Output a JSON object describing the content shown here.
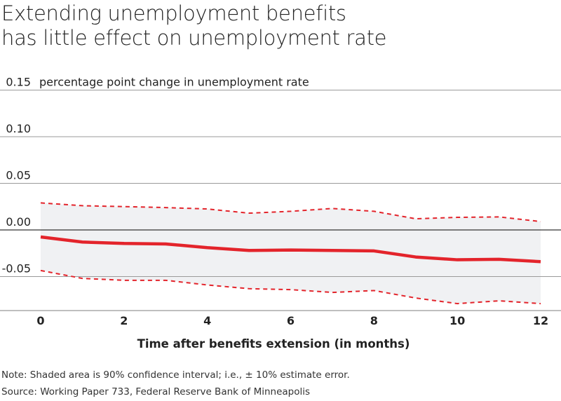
{
  "chart_data": {
    "type": "line",
    "title_lines": [
      "Extending unemployment benefits",
      "has little effect on unemployment rate"
    ],
    "ylabel": "percentage point change in unemployment rate",
    "xlabel": "Time after benefits extension (in months)",
    "x": [
      0,
      1,
      2,
      3,
      4,
      5,
      6,
      7,
      8,
      9,
      10,
      11,
      12
    ],
    "xticks": [
      0,
      2,
      4,
      6,
      8,
      10,
      12
    ],
    "yticks": [
      0.15,
      0.1,
      0.05,
      0.0,
      -0.05
    ],
    "ytick_labels": [
      "0.15",
      "0.10",
      "0.05",
      "0.00",
      "-0.05"
    ],
    "xlim": [
      0,
      12
    ],
    "ylim": [
      -0.085,
      0.15
    ],
    "grid": true,
    "series": [
      {
        "role": "estimate",
        "style": "solid",
        "values": [
          -0.0075,
          -0.013,
          -0.0145,
          -0.015,
          -0.019,
          -0.022,
          -0.0215,
          -0.022,
          -0.0225,
          -0.029,
          -0.032,
          -0.0315,
          -0.034
        ]
      },
      {
        "role": "upper-bound",
        "style": "dashed",
        "values": [
          0.029,
          0.026,
          0.025,
          0.024,
          0.0225,
          0.018,
          0.02,
          0.023,
          0.02,
          0.012,
          0.0135,
          0.014,
          0.009
        ]
      },
      {
        "role": "lower-bound",
        "style": "dashed",
        "values": [
          -0.0435,
          -0.052,
          -0.054,
          -0.054,
          -0.059,
          -0.063,
          -0.064,
          -0.067,
          -0.065,
          -0.073,
          -0.079,
          -0.076,
          -0.079
        ]
      }
    ],
    "colors": {
      "line": "#e3242b",
      "band": "#f0f1f3",
      "grid": "#9a9a9a",
      "zero": "#333333"
    }
  },
  "notes": {
    "note": "Note: Shaded area is 90% confidence interval; i.e., ± 10% estimate error.",
    "source": "Source: Working Paper 733, Federal Reserve Bank of Minneapolis"
  }
}
